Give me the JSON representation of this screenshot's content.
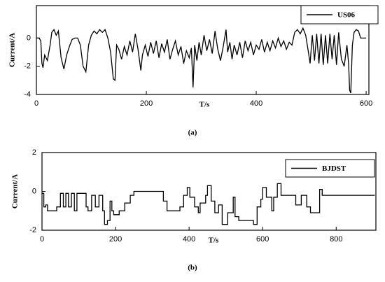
{
  "chart_data": [
    {
      "type": "line",
      "panel_label": "(a)",
      "x_label": "T/s",
      "y_label": "Current/A",
      "x": [
        0,
        5,
        8,
        10,
        12,
        15,
        20,
        25,
        28,
        32,
        36,
        40,
        45,
        50,
        55,
        60,
        65,
        70,
        75,
        80,
        85,
        90,
        95,
        100,
        105,
        110,
        115,
        120,
        125,
        130,
        135,
        140,
        143,
        146,
        150,
        155,
        160,
        165,
        170,
        175,
        180,
        185,
        190,
        193,
        198,
        203,
        208,
        213,
        218,
        223,
        228,
        233,
        238,
        243,
        248,
        253,
        258,
        263,
        268,
        273,
        278,
        282,
        285,
        288,
        292,
        296,
        300,
        305,
        310,
        315,
        320,
        325,
        330,
        335,
        340,
        345,
        348,
        352,
        356,
        360,
        365,
        370,
        375,
        380,
        385,
        390,
        395,
        400,
        405,
        410,
        415,
        420,
        425,
        430,
        435,
        440,
        445,
        450,
        455,
        460,
        465,
        470,
        475,
        480,
        485,
        490,
        495,
        498,
        502,
        506,
        510,
        514,
        518,
        522,
        526,
        530,
        534,
        538,
        542,
        546,
        550,
        555,
        560,
        565,
        568,
        570,
        572,
        575,
        578,
        582,
        586,
        590,
        595,
        600
      ],
      "series": [
        {
          "name": "US06",
          "color": "#000000",
          "values": [
            0,
            0,
            -0.2,
            -1.8,
            -2.1,
            -1.2,
            -1.6,
            -0.5,
            0.4,
            0.6,
            0.2,
            0.5,
            -1.4,
            -2.2,
            -1.2,
            -0.6,
            -0.1,
            0,
            0,
            -0.5,
            -2.0,
            -2.4,
            -0.5,
            0.2,
            0.5,
            0.3,
            0.6,
            0.4,
            0.6,
            0,
            -1.0,
            -2.9,
            -3.0,
            -0.5,
            -0.8,
            -1.5,
            -0.6,
            -1.2,
            -0.2,
            -1.0,
            0.3,
            -0.8,
            -2.3,
            -1.2,
            -0.5,
            -1.3,
            -0.3,
            -1.1,
            -0.2,
            -1.4,
            -0.4,
            -1.0,
            -0.1,
            -1.5,
            -0.8,
            -0.2,
            -1.2,
            -0.6,
            -1.8,
            -0.9,
            -1.4,
            -0.7,
            -3.5,
            -0.5,
            -1.6,
            -0.3,
            -1.2,
            0.2,
            -0.9,
            -0.1,
            -1.1,
            0.5,
            -0.8,
            -1.6,
            -0.6,
            0.6,
            -1.0,
            -0.3,
            -1.5,
            -0.5,
            -1.2,
            -0.3,
            -1.4,
            -0.2,
            -0.9,
            -0.3,
            -1.2,
            -0.5,
            -0.8,
            -0.1,
            -1.0,
            -0.3,
            -0.9,
            -0.2,
            -0.7,
            0,
            -0.6,
            -0.2,
            -0.8,
            -0.3,
            -0.5,
            0.4,
            0.6,
            0.3,
            0.7,
            0.2,
            -1.0,
            -1.8,
            0.2,
            -1.6,
            0.3,
            -1.8,
            0.3,
            -1.9,
            0.2,
            -1.8,
            0.3,
            -1.5,
            0.2,
            -1.9,
            0.4,
            -1.5,
            -2.0,
            -0.5,
            -1.8,
            -3.7,
            -3.9,
            -0.5,
            0.4,
            0.6,
            0.5,
            0,
            0,
            0
          ]
        }
      ],
      "xlim": [
        0,
        605
      ],
      "ylim": [
        -4,
        2.3
      ],
      "xticks": [
        0,
        200,
        400,
        600
      ],
      "yticks": [
        -4,
        -2,
        0
      ]
    },
    {
      "type": "line",
      "panel_label": "(b)",
      "x_label": "T/s",
      "y_label": "Current/A",
      "x": [
        0,
        5,
        5,
        10,
        10,
        15,
        15,
        40,
        40,
        50,
        50,
        58,
        58,
        65,
        65,
        72,
        72,
        80,
        80,
        88,
        88,
        95,
        95,
        120,
        120,
        125,
        125,
        135,
        135,
        145,
        145,
        155,
        155,
        165,
        165,
        170,
        170,
        178,
        178,
        185,
        185,
        190,
        190,
        195,
        195,
        210,
        210,
        225,
        225,
        240,
        240,
        250,
        250,
        330,
        330,
        340,
        340,
        375,
        375,
        385,
        385,
        395,
        395,
        402,
        402,
        415,
        415,
        425,
        425,
        430,
        430,
        445,
        445,
        450,
        450,
        460,
        460,
        470,
        470,
        480,
        480,
        490,
        490,
        505,
        505,
        520,
        520,
        525,
        525,
        535,
        535,
        575,
        575,
        585,
        585,
        595,
        595,
        600,
        600,
        610,
        610,
        625,
        625,
        630,
        630,
        640,
        640,
        650,
        650,
        690,
        690,
        705,
        705,
        720,
        720,
        730,
        730,
        755,
        755,
        762,
        762,
        905
      ],
      "series": [
        {
          "name": "BJDST",
          "color": "#000000",
          "values": [
            -0.1,
            -0.1,
            -0.8,
            -0.8,
            -0.7,
            -0.7,
            -1.0,
            -1.0,
            -0.8,
            -0.8,
            -0.1,
            -0.1,
            -0.8,
            -0.8,
            -0.1,
            -0.1,
            -0.8,
            -0.8,
            -0.1,
            -0.1,
            -1.0,
            -1.0,
            -0.1,
            -0.1,
            -0.8,
            -0.8,
            -1.0,
            -1.0,
            -0.2,
            -0.2,
            -0.8,
            -0.8,
            -0.2,
            -0.2,
            -1.0,
            -1.0,
            -1.7,
            -1.7,
            -1.5,
            -1.5,
            -0.5,
            -0.5,
            -1.0,
            -1.0,
            -1.2,
            -1.2,
            -1.0,
            -1.0,
            -0.6,
            -0.6,
            -0.2,
            -0.2,
            0,
            0,
            -0.5,
            -0.5,
            -1.0,
            -1.0,
            -0.8,
            -0.8,
            -0.2,
            -0.2,
            0.2,
            0.2,
            -0.3,
            -0.3,
            -0.8,
            -0.8,
            -1.1,
            -1.1,
            -0.6,
            -0.6,
            -0.2,
            -0.2,
            0.3,
            0.3,
            -0.5,
            -0.5,
            -1.1,
            -1.1,
            -0.7,
            -0.7,
            -1.7,
            -1.7,
            -1.1,
            -1.1,
            -0.3,
            -0.3,
            -1.3,
            -1.3,
            -1.5,
            -1.5,
            -1.7,
            -1.7,
            -0.8,
            -0.8,
            -0.4,
            -0.4,
            0.2,
            0.2,
            -0.3,
            -0.3,
            -1.0,
            -1.0,
            -0.3,
            -0.3,
            0.4,
            0.4,
            -0.2,
            -0.2,
            -0.7,
            -0.7,
            -0.2,
            -0.2,
            -0.8,
            -0.8,
            -1.1,
            -1.1,
            0.1,
            0.1,
            -0.2,
            -0.2
          ]
        }
      ],
      "xlim": [
        0,
        908
      ],
      "ylim": [
        -2,
        2
      ],
      "xticks": [
        0,
        200,
        400,
        600,
        800
      ],
      "yticks": [
        -2,
        0,
        2
      ]
    }
  ]
}
